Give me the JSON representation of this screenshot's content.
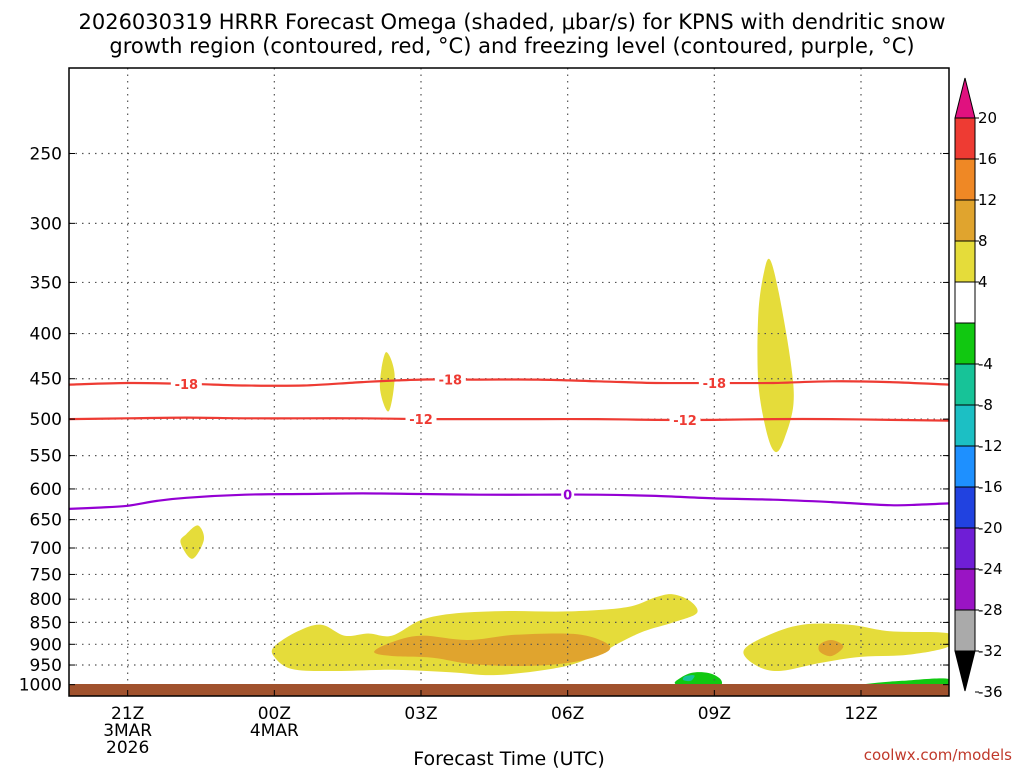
{
  "chart_data": {
    "type": "contour",
    "title_line1": "2026030319 HRRR Forecast Omega (shaded, μbar/s) for KPNS with dendritic snow",
    "title_line2": "growth region (contoured, red, °C) and freezing level (contoured, purple, °C)",
    "xlabel": "Forecast Time (UTC)",
    "ylabel": "",
    "credit": "coolwx.com/models",
    "x_range": [
      -2,
      13
    ],
    "y_range": [
      1030,
      200
    ],
    "x_ticks": [
      {
        "x": -1,
        "lines": [
          "21Z",
          "3MAR",
          "2026"
        ]
      },
      {
        "x": 1.5,
        "lines": [
          "00Z",
          "4MAR"
        ]
      },
      {
        "x": 4,
        "lines": [
          "03Z"
        ]
      },
      {
        "x": 6.5,
        "lines": [
          "06Z"
        ]
      },
      {
        "x": 9,
        "lines": [
          "09Z"
        ]
      },
      {
        "x": 11.5,
        "lines": [
          "12Z"
        ]
      }
    ],
    "y_ticks": [
      250,
      300,
      350,
      400,
      450,
      500,
      550,
      600,
      650,
      700,
      750,
      800,
      850,
      900,
      950,
      1000
    ],
    "isotherms": [
      {
        "name": "-18",
        "color": "#ee3b33",
        "label_x": [
          0,
          4.5,
          9
        ],
        "points": [
          [
            -2,
            457
          ],
          [
            -1,
            455
          ],
          [
            0,
            456
          ],
          [
            1,
            458
          ],
          [
            2,
            458
          ],
          [
            3,
            454
          ],
          [
            4,
            451
          ],
          [
            5,
            451
          ],
          [
            6,
            451
          ],
          [
            7,
            453
          ],
          [
            8,
            455
          ],
          [
            9,
            455
          ],
          [
            10,
            455
          ],
          [
            11,
            453
          ],
          [
            12,
            454
          ],
          [
            13,
            457
          ]
        ]
      },
      {
        "name": "-12",
        "color": "#ee3b33",
        "label_x": [
          4,
          8.5
        ],
        "points": [
          [
            -2,
            500
          ],
          [
            -1,
            499
          ],
          [
            0,
            498
          ],
          [
            1,
            499
          ],
          [
            2,
            499
          ],
          [
            3,
            499
          ],
          [
            4,
            500
          ],
          [
            5,
            500
          ],
          [
            6,
            500
          ],
          [
            7,
            500
          ],
          [
            8,
            501
          ],
          [
            9,
            501
          ],
          [
            10,
            500
          ],
          [
            11,
            500
          ],
          [
            12,
            501
          ],
          [
            13,
            502
          ]
        ]
      },
      {
        "name": "0",
        "color": "#9400d3",
        "label_x": [
          6.5
        ],
        "points": [
          [
            -2,
            632
          ],
          [
            -1.5,
            630
          ],
          [
            -1,
            627
          ],
          [
            -0.5,
            619
          ],
          [
            0,
            614
          ],
          [
            1,
            609
          ],
          [
            2,
            608
          ],
          [
            3,
            607
          ],
          [
            4,
            608
          ],
          [
            5,
            609
          ],
          [
            6,
            609
          ],
          [
            7,
            609
          ],
          [
            8,
            611
          ],
          [
            9,
            615
          ],
          [
            10,
            617
          ],
          [
            11,
            621
          ],
          [
            12,
            626
          ],
          [
            12.5,
            625
          ],
          [
            13,
            623
          ]
        ]
      }
    ],
    "omega_regions": [
      {
        "level": 4,
        "color": "#e5dc3a",
        "outline": [
          [
            0,
            675
          ],
          [
            0.2,
            660
          ],
          [
            0.3,
            685
          ],
          [
            0.1,
            720
          ],
          [
            -0.1,
            690
          ]
        ]
      },
      {
        "level": 4,
        "color": "#e5dc3a",
        "outline": [
          [
            3.4,
            420
          ],
          [
            3.55,
            445
          ],
          [
            3.45,
            490
          ],
          [
            3.3,
            460
          ]
        ]
      },
      {
        "level": 4,
        "color": "#e5dc3a",
        "outline": [
          [
            9.95,
            330
          ],
          [
            10.1,
            360
          ],
          [
            10.3,
            430
          ],
          [
            10.35,
            480
          ],
          [
            10.2,
            525
          ],
          [
            10.05,
            545
          ],
          [
            9.9,
            520
          ],
          [
            9.75,
            455
          ],
          [
            9.75,
            380
          ],
          [
            9.85,
            340
          ]
        ]
      },
      {
        "level": 4,
        "color": "#e5dc3a",
        "outline": [
          [
            1.5,
            930
          ],
          [
            1.5,
            905
          ],
          [
            1.9,
            870
          ],
          [
            2.3,
            855
          ],
          [
            2.7,
            880
          ],
          [
            3.1,
            875
          ],
          [
            3.5,
            880
          ],
          [
            4.0,
            845
          ],
          [
            4.6,
            830
          ],
          [
            5.5,
            825
          ],
          [
            6.5,
            826
          ],
          [
            7.5,
            817
          ],
          [
            8.0,
            796
          ],
          [
            8.3,
            790
          ],
          [
            8.6,
            805
          ],
          [
            8.7,
            830
          ],
          [
            8.3,
            850
          ],
          [
            7.8,
            870
          ],
          [
            7.4,
            895
          ],
          [
            7.0,
            925
          ],
          [
            6.4,
            955
          ],
          [
            5.3,
            975
          ],
          [
            4.5,
            968
          ],
          [
            3.5,
            962
          ],
          [
            2.5,
            965
          ],
          [
            1.8,
            960
          ]
        ]
      },
      {
        "level": 8,
        "color": "#e0a42e",
        "outline": [
          [
            3.2,
            918
          ],
          [
            3.5,
            895
          ],
          [
            4.0,
            880
          ],
          [
            4.8,
            890
          ],
          [
            5.6,
            878
          ],
          [
            6.6,
            876
          ],
          [
            7.1,
            893
          ],
          [
            7.2,
            915
          ],
          [
            6.7,
            940
          ],
          [
            5.9,
            952
          ],
          [
            4.9,
            948
          ],
          [
            4.2,
            932
          ],
          [
            3.5,
            928
          ]
        ]
      },
      {
        "level": 4,
        "color": "#e5dc3a",
        "outline": [
          [
            9.5,
            915
          ],
          [
            9.9,
            880
          ],
          [
            10.5,
            855
          ],
          [
            11.3,
            855
          ],
          [
            12.0,
            870
          ],
          [
            13.0,
            875
          ],
          [
            13.0,
            905
          ],
          [
            12.3,
            925
          ],
          [
            11.5,
            930
          ],
          [
            10.8,
            945
          ],
          [
            10.1,
            965
          ],
          [
            9.7,
            950
          ]
        ]
      },
      {
        "level": 8,
        "color": "#e0a42e",
        "outline": [
          [
            10.8,
            900
          ],
          [
            11.0,
            890
          ],
          [
            11.2,
            905
          ],
          [
            11.0,
            928
          ],
          [
            10.8,
            918
          ]
        ]
      },
      {
        "level": -4,
        "color": "#11c811",
        "outline": [
          [
            8.35,
            990
          ],
          [
            8.6,
            970
          ],
          [
            8.9,
            970
          ],
          [
            9.1,
            985
          ],
          [
            9.1,
            1003
          ],
          [
            8.8,
            1008
          ],
          [
            8.5,
            1008
          ],
          [
            8.35,
            1000
          ]
        ]
      },
      {
        "level": -8,
        "color": "#17c398",
        "outline": [
          [
            8.5,
            978
          ],
          [
            8.66,
            976
          ],
          [
            8.6,
            990
          ],
          [
            8.47,
            988
          ]
        ]
      },
      {
        "level": -4,
        "color": "#11c811",
        "outline": [
          [
            11.1,
            1013
          ],
          [
            11.6,
            998
          ],
          [
            12.2,
            990
          ],
          [
            13.0,
            985
          ],
          [
            13.0,
            1018
          ],
          [
            11.1,
            1018
          ]
        ]
      }
    ],
    "surface_color": "#a0522d",
    "colorbar": {
      "labels": [
        "20",
        "16",
        "12",
        "8",
        "4",
        "-4",
        "-8",
        "-12",
        "-16",
        "-20",
        "-24",
        "-28",
        "-32",
        "-36"
      ],
      "colors_top_to_bottom": [
        "#e0117f",
        "#ee3b33",
        "#ef8825",
        "#e0a42e",
        "#e5dc3a",
        "#ffffff",
        "#11c811",
        "#17c398",
        "#1cbfc4",
        "#1e90ff",
        "#2142e0",
        "#6f1ed6",
        "#9a14c4",
        "#aaaaaa",
        "#000000"
      ]
    }
  }
}
